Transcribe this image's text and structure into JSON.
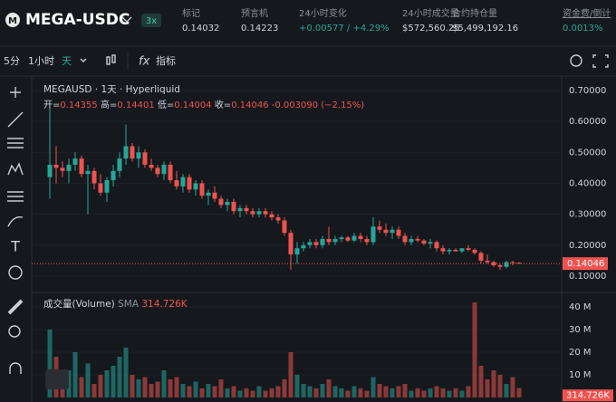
{
  "header": {
    "symbol": "MEGA-USDC",
    "leverage": "3x",
    "stats": [
      {
        "label": "标记",
        "value": "0.14032"
      },
      {
        "label": "预言机",
        "value": "0.14223"
      },
      {
        "label": "24小时变化",
        "value": "+0.00577 / +4.29%"
      },
      {
        "label": "24小时成交量",
        "value": "$572,560.25"
      },
      {
        "label": "合约持仓量",
        "value": "$5,499,192.16"
      },
      {
        "label": "资金费/倒计",
        "value": "0.0013%"
      }
    ]
  },
  "toolbar": {
    "intervals": [
      "5分",
      "1小时",
      "天"
    ],
    "indicators": "指标"
  },
  "chart_data": {
    "type": "candlestick",
    "title": "MEGAUSD · 1天 · Hyperliquid",
    "ohlc_labels": [
      "开=",
      "高=",
      "低=",
      "收="
    ],
    "change": "-0.003090 (−2.15%)",
    "up_color": "#26a69a",
    "down_color": "#ef5350",
    "open": [
      0.42,
      0.46,
      0.45,
      0.44,
      0.46,
      0.48,
      0.43,
      0.44,
      0.4,
      0.37,
      0.41,
      0.44,
      0.48,
      0.52,
      0.48,
      0.5,
      0.46,
      0.45,
      0.43,
      0.46,
      0.41,
      0.39,
      0.42,
      0.38,
      0.4,
      0.36,
      0.37,
      0.35,
      0.33,
      0.34,
      0.31,
      0.32,
      0.31,
      0.3,
      0.31,
      0.3,
      0.29,
      0.28,
      0.24,
      0.17,
      0.19,
      0.2,
      0.21,
      0.2,
      0.22,
      0.21,
      0.22,
      0.225,
      0.215,
      0.23,
      0.22,
      0.21,
      0.26,
      0.25,
      0.24,
      0.25,
      0.23,
      0.21,
      0.22,
      0.215,
      0.205,
      0.21,
      0.19,
      0.18,
      0.185,
      0.18,
      0.19,
      0.185,
      0.175,
      0.15,
      0.145,
      0.135,
      0.13,
      0.145,
      0.14355
    ],
    "high": [
      0.66,
      0.52,
      0.47,
      0.48,
      0.5,
      0.49,
      0.46,
      0.45,
      0.43,
      0.42,
      0.46,
      0.5,
      0.59,
      0.53,
      0.52,
      0.51,
      0.48,
      0.46,
      0.47,
      0.47,
      0.44,
      0.43,
      0.43,
      0.41,
      0.41,
      0.38,
      0.39,
      0.36,
      0.35,
      0.35,
      0.33,
      0.33,
      0.32,
      0.32,
      0.32,
      0.31,
      0.3,
      0.29,
      0.25,
      0.21,
      0.21,
      0.22,
      0.22,
      0.23,
      0.26,
      0.23,
      0.23,
      0.23,
      0.24,
      0.24,
      0.23,
      0.29,
      0.28,
      0.27,
      0.26,
      0.26,
      0.24,
      0.23,
      0.23,
      0.22,
      0.22,
      0.215,
      0.2,
      0.19,
      0.19,
      0.19,
      0.2,
      0.19,
      0.18,
      0.17,
      0.15,
      0.14,
      0.15,
      0.15,
      0.14401
    ],
    "low": [
      0.35,
      0.4,
      0.42,
      0.4,
      0.44,
      0.42,
      0.3,
      0.38,
      0.36,
      0.34,
      0.39,
      0.42,
      0.46,
      0.47,
      0.45,
      0.45,
      0.44,
      0.42,
      0.41,
      0.4,
      0.38,
      0.37,
      0.37,
      0.36,
      0.35,
      0.33,
      0.34,
      0.32,
      0.31,
      0.3,
      0.29,
      0.3,
      0.29,
      0.29,
      0.29,
      0.28,
      0.27,
      0.23,
      0.12,
      0.14,
      0.18,
      0.19,
      0.19,
      0.19,
      0.2,
      0.2,
      0.21,
      0.21,
      0.21,
      0.21,
      0.2,
      0.2,
      0.24,
      0.23,
      0.22,
      0.22,
      0.2,
      0.2,
      0.21,
      0.2,
      0.19,
      0.18,
      0.17,
      0.17,
      0.18,
      0.175,
      0.18,
      0.17,
      0.14,
      0.14,
      0.13,
      0.12,
      0.125,
      0.135,
      0.14004
    ],
    "close": [
      0.46,
      0.45,
      0.44,
      0.46,
      0.48,
      0.43,
      0.44,
      0.4,
      0.37,
      0.41,
      0.44,
      0.48,
      0.52,
      0.48,
      0.5,
      0.46,
      0.45,
      0.43,
      0.46,
      0.41,
      0.39,
      0.42,
      0.38,
      0.4,
      0.36,
      0.37,
      0.35,
      0.33,
      0.34,
      0.31,
      0.32,
      0.31,
      0.3,
      0.31,
      0.3,
      0.29,
      0.28,
      0.24,
      0.17,
      0.19,
      0.2,
      0.21,
      0.2,
      0.22,
      0.21,
      0.22,
      0.225,
      0.215,
      0.23,
      0.22,
      0.21,
      0.26,
      0.25,
      0.24,
      0.25,
      0.23,
      0.21,
      0.22,
      0.215,
      0.205,
      0.21,
      0.19,
      0.18,
      0.185,
      0.18,
      0.19,
      0.185,
      0.175,
      0.15,
      0.145,
      0.135,
      0.13,
      0.145,
      0.14355,
      0.14046
    ],
    "volume": [
      30,
      18,
      8,
      12,
      20,
      9,
      15,
      6,
      10,
      12,
      14,
      18,
      22,
      10,
      8,
      9,
      6,
      7,
      12,
      8,
      9,
      6,
      5,
      7,
      4,
      6,
      5,
      8,
      4,
      5,
      3,
      4,
      3,
      5,
      3,
      4,
      5,
      8,
      20,
      10,
      6,
      5,
      4,
      6,
      8,
      5,
      4,
      3,
      5,
      4,
      3,
      9,
      6,
      5,
      4,
      5,
      6,
      3,
      4,
      3,
      4,
      5,
      4,
      3,
      4,
      3,
      5,
      42,
      14,
      8,
      12,
      10,
      6,
      9,
      4.2
    ],
    "ylim": [
      0.056,
      0.735
    ],
    "yticks": [
      {
        "value": 0.7,
        "label": "0.70000"
      },
      {
        "value": 0.6,
        "label": "0.60000"
      },
      {
        "value": 0.5,
        "label": "0.50000"
      },
      {
        "value": 0.4,
        "label": "0.40000"
      },
      {
        "value": 0.3,
        "label": "0.30000"
      },
      {
        "value": 0.2,
        "label": "0.20000"
      },
      {
        "value": 0.1,
        "label": "0.10000"
      }
    ],
    "volume_title": "成交量(Volume)",
    "volume_sma_name": "SMA",
    "volume_sma": {
      "value": 0.314726,
      "label": "314.726K"
    },
    "volume_ylim": [
      0,
      45.2
    ],
    "volume_yticks": [
      {
        "value": 40,
        "label": "40 M"
      },
      {
        "value": 30,
        "label": "30 M"
      },
      {
        "value": 20,
        "label": "20 M"
      },
      {
        "value": 10,
        "label": "10 M"
      }
    ]
  }
}
